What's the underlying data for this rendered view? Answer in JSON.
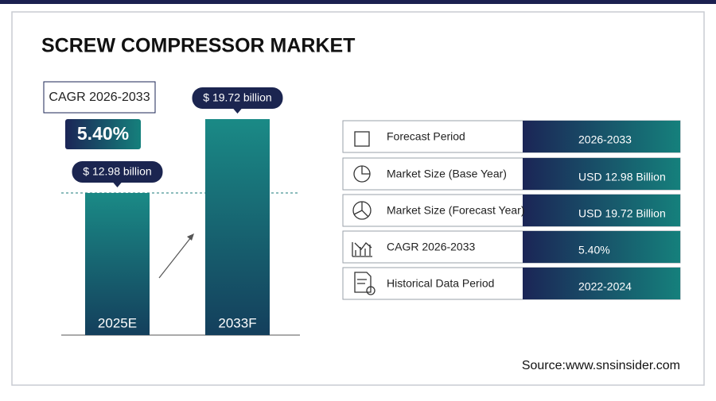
{
  "title": "SCREW COMPRESSOR MARKET",
  "cagr": {
    "label": "CAGR 2026-2033",
    "value": "5.40%"
  },
  "chart_data": {
    "type": "bar",
    "categories": [
      "2025E",
      "2033F"
    ],
    "values": [
      12.98,
      19.72
    ],
    "value_labels": [
      "$ 12.98 billion",
      "$ 19.72 billion"
    ],
    "color": "#1a8a86"
  },
  "table": {
    "rows": [
      [
        "Forecast Period",
        "2026-2033"
      ],
      [
        "Market Size (Base Year)",
        "USD 12.98 Billion"
      ],
      [
        "Market Size (Forecast Year)",
        "USD 19.72 Billion"
      ],
      [
        "CAGR 2026-2033",
        "5.40%"
      ],
      [
        "Historical Data Period",
        "2022-2024"
      ]
    ]
  },
  "source": "Source:www.snsinsider.com"
}
